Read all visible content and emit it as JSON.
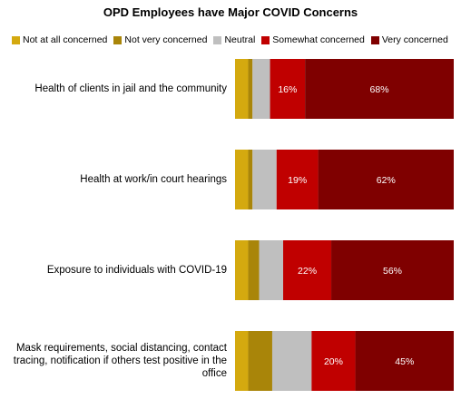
{
  "chart_data": {
    "type": "bar",
    "orientation": "horizontal",
    "stacked": true,
    "title": "OPD Employees have Major COVID Concerns",
    "legend_position": "top",
    "grid": false,
    "categories": [
      "Health of clients in jail and the community",
      "Health at work/in court hearings",
      "Exposure to individuals with COVID-19",
      "Mask requirements, social distancing, contact tracing, notification if others test positive in the office"
    ],
    "series": [
      {
        "name": "Not at all concerned",
        "color": "#D4A90F",
        "values": [
          6,
          6,
          6,
          6
        ]
      },
      {
        "name": "Not very concerned",
        "color": "#A98509",
        "values": [
          2,
          2,
          5,
          11
        ]
      },
      {
        "name": "Neutral",
        "color": "#BFBFBF",
        "values": [
          8,
          11,
          11,
          18
        ]
      },
      {
        "name": "Somewhat concerned",
        "color": "#C00000",
        "values": [
          16,
          19,
          22,
          20
        ],
        "labels": [
          "16%",
          "19%",
          "22%",
          "20%"
        ]
      },
      {
        "name": "Very concerned",
        "color": "#7F0000",
        "values": [
          68,
          62,
          56,
          45
        ],
        "labels": [
          "68%",
          "62%",
          "56%",
          "45%"
        ]
      }
    ],
    "xlim": [
      0,
      100
    ]
  }
}
